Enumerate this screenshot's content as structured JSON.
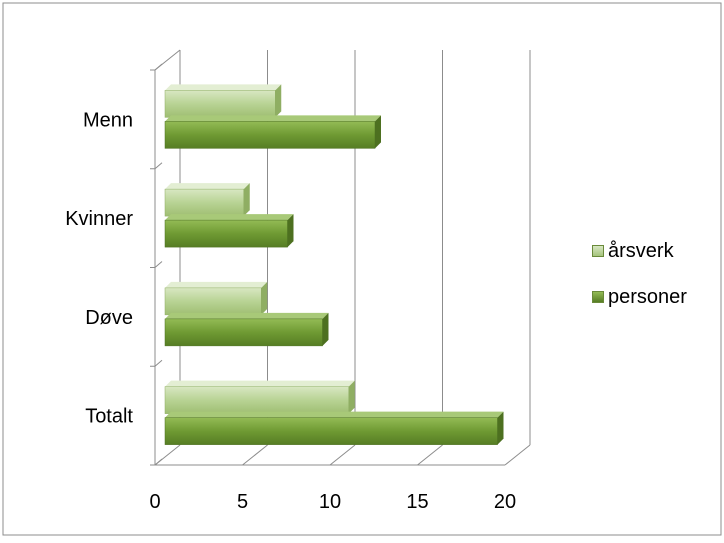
{
  "chart_data": {
    "type": "bar",
    "orientation": "horizontal",
    "style": "3d-clustered-bar",
    "categories": [
      "Menn",
      "Kvinner",
      "Døve",
      "Totalt"
    ],
    "series": [
      {
        "name": "årsverk",
        "values": [
          6.3,
          4.5,
          5.5,
          10.5
        ],
        "color": "#b3cf8c"
      },
      {
        "name": "personer",
        "values": [
          12,
          7,
          9,
          19
        ],
        "color": "#77a03c"
      }
    ],
    "xlim": [
      0,
      20
    ],
    "xticks": [
      "0",
      "5",
      "10",
      "15",
      "20"
    ],
    "grid": true,
    "legend_position": "right"
  }
}
